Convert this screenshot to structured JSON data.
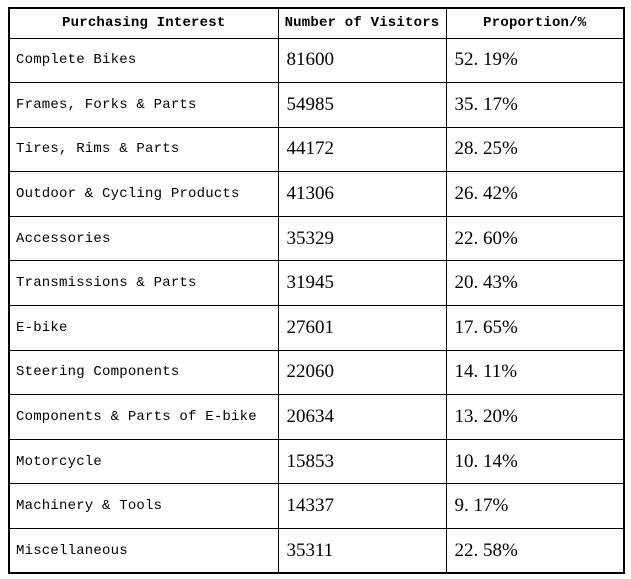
{
  "colors": {
    "border": "#000000",
    "text": "#000000",
    "background": "#ffffff"
  },
  "table": {
    "headers": [
      "Purchasing Interest",
      "Number of Visitors",
      "Proportion/%"
    ],
    "rows": [
      {
        "interest": "Complete Bikes",
        "visitors": "81600",
        "proportion": "52. 19%"
      },
      {
        "interest": "Frames, Forks & Parts",
        "visitors": "54985",
        "proportion": "35. 17%"
      },
      {
        "interest": "Tires, Rims & Parts",
        "visitors": "44172",
        "proportion": "28. 25%"
      },
      {
        "interest": "Outdoor & Cycling Products",
        "visitors": "41306",
        "proportion": "26. 42%"
      },
      {
        "interest": "Accessories",
        "visitors": "35329",
        "proportion": "22. 60%"
      },
      {
        "interest": "Transmissions & Parts",
        "visitors": "31945",
        "proportion": "20. 43%"
      },
      {
        "interest": "E-bike",
        "visitors": "27601",
        "proportion": "17. 65%"
      },
      {
        "interest": "Steering Components",
        "visitors": "22060",
        "proportion": "14. 11%"
      },
      {
        "interest": "Components & Parts of E-bike",
        "visitors": "20634",
        "proportion": "13. 20%"
      },
      {
        "interest": "Motorcycle",
        "visitors": "15853",
        "proportion": "10. 14%"
      },
      {
        "interest": "Machinery & Tools",
        "visitors": "14337",
        "proportion": "9. 17%"
      },
      {
        "interest": "Miscellaneous",
        "visitors": "35311",
        "proportion": "22. 58%"
      }
    ]
  },
  "chart_data": {
    "type": "table",
    "title": "",
    "columns": [
      "Purchasing Interest",
      "Number of Visitors",
      "Proportion/%"
    ],
    "rows": [
      [
        "Complete Bikes",
        81600,
        52.19
      ],
      [
        "Frames, Forks & Parts",
        54985,
        35.17
      ],
      [
        "Tires, Rims & Parts",
        44172,
        28.25
      ],
      [
        "Outdoor & Cycling Products",
        41306,
        26.42
      ],
      [
        "Accessories",
        35329,
        22.6
      ],
      [
        "Transmissions & Parts",
        31945,
        20.43
      ],
      [
        "E-bike",
        27601,
        17.65
      ],
      [
        "Steering Components",
        22060,
        14.11
      ],
      [
        "Components & Parts of E-bike",
        20634,
        13.2
      ],
      [
        "Motorcycle",
        15853,
        10.14
      ],
      [
        "Machinery & Tools",
        14337,
        9.17
      ],
      [
        "Miscellaneous",
        35311,
        22.58
      ]
    ]
  }
}
